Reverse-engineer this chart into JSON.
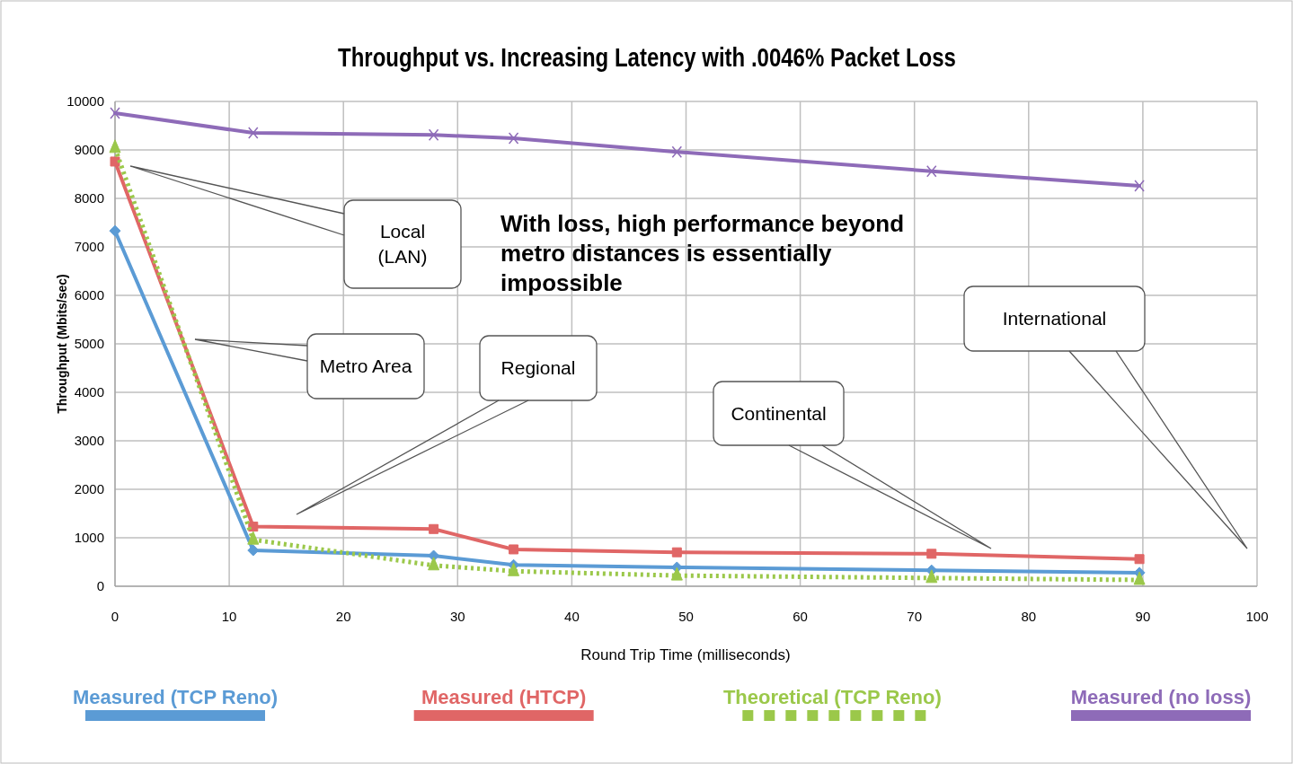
{
  "chart_data": {
    "type": "line",
    "title": "Throughput vs. Increasing Latency with .0046% Packet Loss",
    "xlabel": "Round Trip Time (milliseconds)",
    "ylabel": "Throughput (Mbits/sec)",
    "x": [
      0,
      12.1,
      27.9,
      34.9,
      49.2,
      71.5,
      89.7
    ],
    "series": [
      {
        "name": "Measured (TCP Reno)",
        "color": "#5b9bd5",
        "marker": "diamond",
        "line_style": "solid",
        "values": [
          7330,
          740,
          630,
          440,
          390,
          330,
          280
        ]
      },
      {
        "name": "Measured (HTCP)",
        "color": "#e06666",
        "marker": "square",
        "line_style": "solid",
        "values": [
          8760,
          1230,
          1180,
          760,
          700,
          670,
          560
        ]
      },
      {
        "name": "Theoretical (TCP Reno)",
        "color": "#9bc84a",
        "marker": "triangle",
        "line_style": "dotted",
        "values": [
          9040,
          960,
          430,
          310,
          220,
          170,
          130
        ]
      },
      {
        "name": "Measured (no loss)",
        "color": "#8e6bb8",
        "marker": "cross",
        "line_style": "solid",
        "values": [
          9760,
          9350,
          9310,
          9240,
          8960,
          8560,
          8260
        ]
      }
    ],
    "xlim": [
      0,
      100
    ],
    "xticks": [
      0,
      10,
      20,
      30,
      40,
      50,
      60,
      70,
      80,
      90,
      100
    ],
    "ylim": [
      0,
      10000
    ],
    "yticks": [
      0,
      1000,
      2000,
      3000,
      4000,
      5000,
      6000,
      7000,
      8000,
      9000,
      10000
    ],
    "grid": true,
    "legend": "bottom",
    "annotations": [
      "Local (LAN)",
      "Metro Area",
      "Regional",
      "Continental",
      "International",
      "With loss, high performance beyond metro distances is essentially impossible"
    ]
  }
}
